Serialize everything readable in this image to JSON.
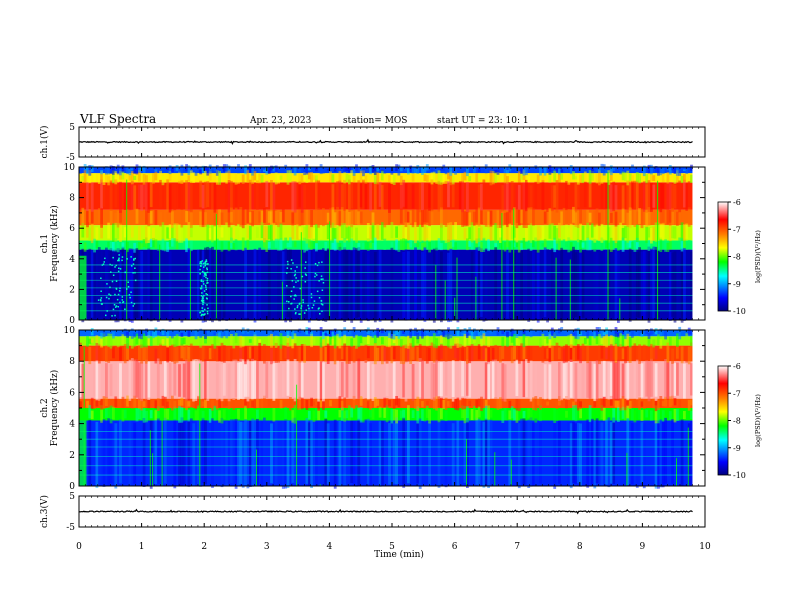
{
  "header": {
    "title": "VLF Spectra",
    "date": "Apr. 23, 2023",
    "station": "station= MOS",
    "start": "start  UT =   23: 10: 1"
  },
  "chart_data": [
    {
      "type": "line",
      "panel": "ch1-waveform",
      "ylabel": "ch.1(V)",
      "ylim": [
        -5,
        5
      ],
      "yticks": [
        "5",
        "-5"
      ],
      "x": [
        0,
        10
      ],
      "values": [
        0,
        0
      ],
      "color": "#000000"
    },
    {
      "type": "heatmap",
      "panel": "ch1-spectrogram",
      "ylabel": "ch.1\nFrequency (kHz)",
      "xlim": [
        0,
        10
      ],
      "ylim": [
        0,
        10
      ],
      "yticks": [
        "0",
        "2",
        "4",
        "6",
        "8",
        "10"
      ],
      "colorbar": {
        "label": "log(PSD)(V²/Hz)",
        "range": [
          -10,
          -6
        ],
        "ticks": [
          "-6",
          "-7",
          "-8",
          "-9",
          "-10"
        ],
        "colors": [
          "#000080",
          "#0000ff",
          "#00ffff",
          "#00ff00",
          "#ffff00",
          "#ff8000",
          "#ff0000",
          "#ffffff"
        ]
      },
      "bands": [
        {
          "f_low": 0,
          "f_high": 4.6,
          "logpsd": -9.8
        },
        {
          "f_low": 4.6,
          "f_high": 5.2,
          "logpsd": -8.4
        },
        {
          "f_low": 5.2,
          "f_high": 6.2,
          "logpsd": -7.8
        },
        {
          "f_low": 6.2,
          "f_high": 7.2,
          "logpsd": -7.1
        },
        {
          "f_low": 7.2,
          "f_high": 9.0,
          "logpsd": -6.8
        },
        {
          "f_low": 9.0,
          "f_high": 9.6,
          "logpsd": -7.6
        },
        {
          "f_low": 9.6,
          "f_high": 10,
          "logpsd": -9.3
        }
      ],
      "data_end_min": 9.8
    },
    {
      "type": "heatmap",
      "panel": "ch2-spectrogram",
      "ylabel": "ch.2\nFrequency (kHz)",
      "xlim": [
        0,
        10
      ],
      "ylim": [
        0,
        10
      ],
      "yticks": [
        "0",
        "2",
        "4",
        "6",
        "8",
        "10"
      ],
      "colorbar": {
        "label": "log(PSD)(V²/Hz)",
        "range": [
          -10,
          -6
        ],
        "ticks": [
          "-6",
          "-7",
          "-8",
          "-9",
          "-10"
        ],
        "colors": [
          "#000080",
          "#0000ff",
          "#00ffff",
          "#00ff00",
          "#ffff00",
          "#ff8000",
          "#ff0000",
          "#ffffff"
        ]
      },
      "bands": [
        {
          "f_low": 0,
          "f_high": 4.2,
          "logpsd": -9.4
        },
        {
          "f_low": 4.2,
          "f_high": 5.0,
          "logpsd": -8.2
        },
        {
          "f_low": 5.0,
          "f_high": 5.6,
          "logpsd": -7.0
        },
        {
          "f_low": 5.6,
          "f_high": 8.0,
          "logpsd": -6.2
        },
        {
          "f_low": 8.0,
          "f_high": 9.0,
          "logpsd": -6.9
        },
        {
          "f_low": 9.0,
          "f_high": 9.6,
          "logpsd": -7.9
        },
        {
          "f_low": 9.6,
          "f_high": 10,
          "logpsd": -9.2
        }
      ],
      "data_end_min": 9.8
    },
    {
      "type": "line",
      "panel": "ch3-waveform",
      "ylabel": "ch.3(V)",
      "ylim": [
        -5,
        5
      ],
      "yticks": [
        "5",
        "-5"
      ],
      "x": [
        0,
        10
      ],
      "values": [
        0,
        0
      ],
      "color": "#000000"
    }
  ],
  "xaxis": {
    "label": "Time  (min)",
    "ticks": [
      "0",
      "1",
      "2",
      "3",
      "4",
      "5",
      "6",
      "7",
      "8",
      "9",
      "10"
    ],
    "range": [
      0,
      10
    ]
  }
}
